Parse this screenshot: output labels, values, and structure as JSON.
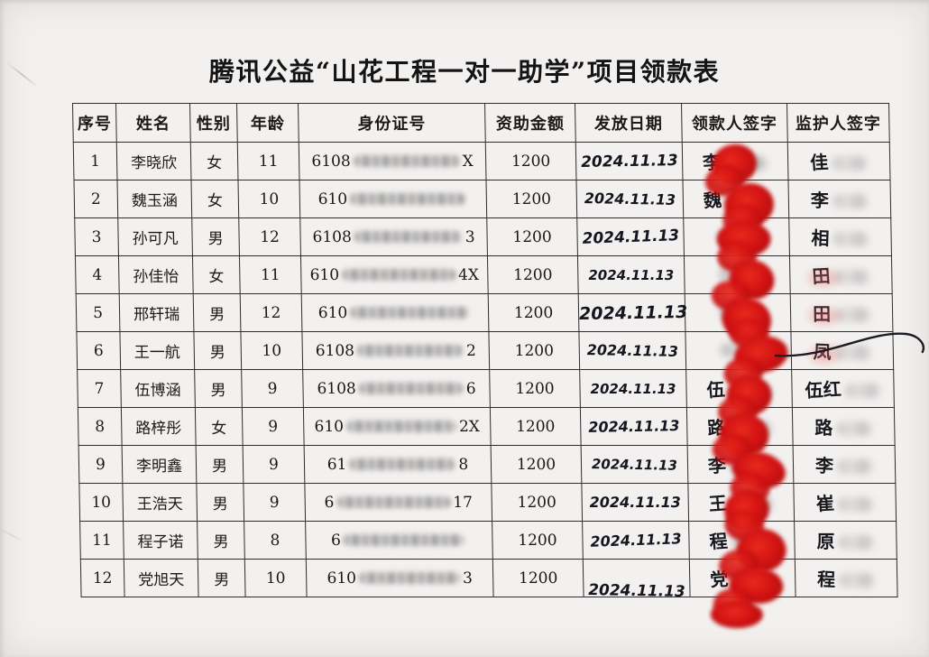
{
  "page": {
    "title": "腾讯公益“山花工程一对一助学”项目领款表"
  },
  "colors": {
    "stamp_red": "#d31313",
    "paper": "#f3f1ef",
    "grid_line": "#2e2c2b"
  },
  "table": {
    "headers": [
      "序号",
      "姓名",
      "性别",
      "年龄",
      "身份证号",
      "资助金额",
      "发放日期",
      "领款人签字",
      "监护人签字"
    ],
    "rows": [
      {
        "no": "1",
        "name": "李晓欣",
        "gender": "女",
        "age": "11",
        "id_prefix": "6108",
        "id_suffix": "X",
        "amount": "1200",
        "date": "2024.11.13",
        "payee_visible": "李",
        "guardian_visible": "佳"
      },
      {
        "no": "2",
        "name": "魏玉涵",
        "gender": "女",
        "age": "10",
        "id_prefix": "610",
        "id_suffix": "",
        "amount": "1200",
        "date": "2024.11.13",
        "payee_visible": "魏",
        "guardian_visible": "李"
      },
      {
        "no": "3",
        "name": "孙可凡",
        "gender": "男",
        "age": "12",
        "id_prefix": "6108",
        "id_suffix": "3",
        "amount": "1200",
        "date": "2024.11.13",
        "payee_visible": "",
        "guardian_visible": "相"
      },
      {
        "no": "4",
        "name": "孙佳怡",
        "gender": "女",
        "age": "11",
        "id_prefix": "610",
        "id_suffix": "4X",
        "amount": "1200",
        "date": "2024.11.13",
        "payee_visible": "",
        "guardian_visible": "田"
      },
      {
        "no": "5",
        "name": "邢轩瑞",
        "gender": "男",
        "age": "12",
        "id_prefix": "610",
        "id_suffix": "",
        "amount": "1200",
        "date": "2024.11.13",
        "payee_visible": "",
        "guardian_visible": "田"
      },
      {
        "no": "6",
        "name": "王一航",
        "gender": "男",
        "age": "10",
        "id_prefix": "6108",
        "id_suffix": "2",
        "amount": "1200",
        "date": "2024.11.13",
        "payee_visible": "",
        "guardian_visible": "凤"
      },
      {
        "no": "7",
        "name": "伍博涵",
        "gender": "男",
        "age": "9",
        "id_prefix": "6108",
        "id_suffix": "6",
        "amount": "1200",
        "date": "2024.11.13",
        "payee_visible": "伍",
        "guardian_visible": "伍红"
      },
      {
        "no": "8",
        "name": "路梓彤",
        "gender": "女",
        "age": "9",
        "id_prefix": "610",
        "id_suffix": "2X",
        "amount": "1200",
        "date": "2024.11.13",
        "payee_visible": "路",
        "guardian_visible": "路"
      },
      {
        "no": "9",
        "name": "李明鑫",
        "gender": "男",
        "age": "9",
        "id_prefix": "61",
        "id_suffix": "8",
        "amount": "1200",
        "date": "2024.11.13",
        "payee_visible": "李",
        "guardian_visible": "李"
      },
      {
        "no": "10",
        "name": "王浩天",
        "gender": "男",
        "age": "9",
        "id_prefix": "6",
        "id_suffix": "17",
        "amount": "1200",
        "date": "2024.11.13",
        "payee_visible": "王",
        "guardian_visible": "崔"
      },
      {
        "no": "11",
        "name": "程子诺",
        "gender": "男",
        "age": "8",
        "id_prefix": "6",
        "id_suffix": "",
        "amount": "1200",
        "date": "2024.11.13",
        "payee_visible": "程",
        "guardian_visible": "原"
      },
      {
        "no": "12",
        "name": "党旭天",
        "gender": "男",
        "age": "10",
        "id_prefix": "610",
        "id_suffix": "3",
        "amount": "1200",
        "date": "2024.11.13",
        "payee_visible": "党",
        "guardian_visible": "程"
      }
    ]
  }
}
